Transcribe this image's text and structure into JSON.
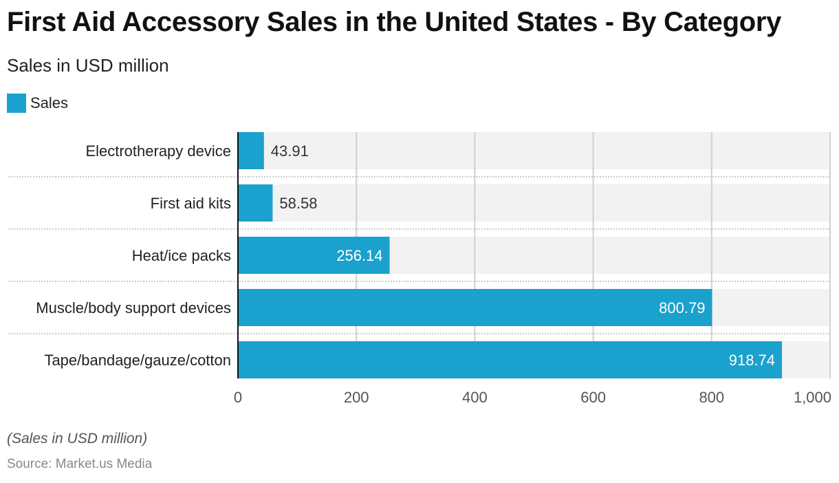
{
  "chart_data": {
    "type": "bar",
    "orientation": "horizontal",
    "title": "First Aid Accessory Sales in the United States - By Category",
    "subtitle": "Sales in USD million",
    "categories": [
      "Electrotherapy device",
      "First aid kits",
      "Heat/ice packs",
      "Muscle/body support devices",
      "Tape/bandage/gauze/cotton"
    ],
    "series": [
      {
        "name": "Sales",
        "color": "#1aa1cd",
        "values": [
          43.91,
          58.58,
          256.14,
          800.79,
          918.74
        ]
      }
    ],
    "value_labels": [
      "43.91",
      "58.58",
      "256.14",
      "800.79",
      "918.74"
    ],
    "xlabel": "",
    "ylabel": "",
    "xlim": [
      0,
      1000
    ],
    "xticks": [
      0,
      200,
      400,
      600,
      800,
      1000
    ],
    "xtick_labels": [
      "0",
      "200",
      "400",
      "600",
      "800",
      "1,000"
    ],
    "grid": true,
    "legend": {
      "position": "top-left",
      "entries": [
        "Sales"
      ]
    },
    "note": "(Sales in USD million)",
    "source": "Source: Market.us Media"
  },
  "colors": {
    "bar": "#1aa1cd",
    "track": "#f2f2f2",
    "grid": "#d0d0d0",
    "label_inside": "#ffffff",
    "label_outside": "#333333"
  }
}
